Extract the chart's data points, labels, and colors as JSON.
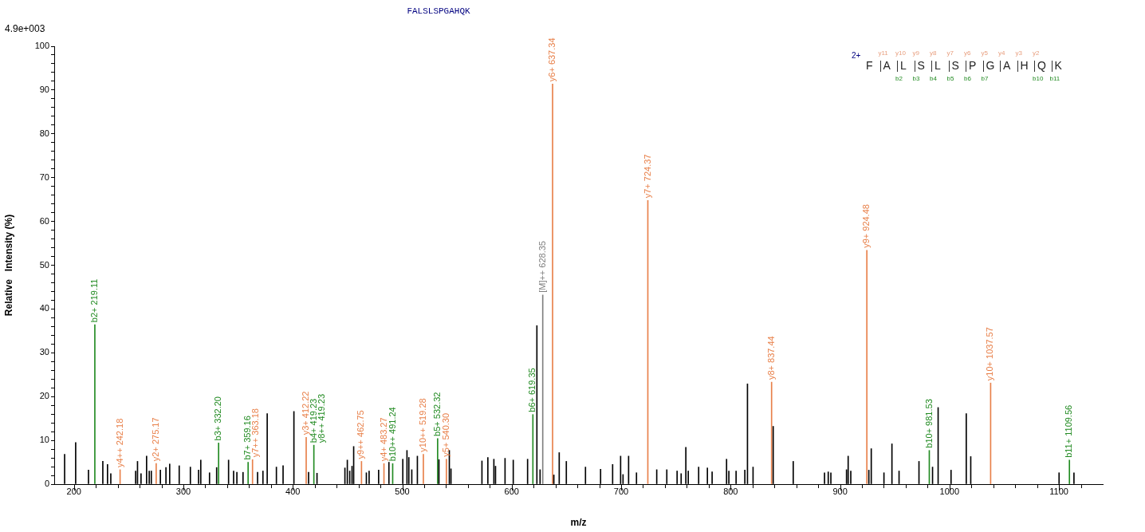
{
  "chart_data": {
    "type": "bar",
    "title": "FALSLSPGAHQK",
    "xlabel": "m/z",
    "ylabel": "Relative   Intensity (%)",
    "xlim": [
      182,
      1140
    ],
    "xticks": [
      200,
      {
        "value": 220,
        "label": null
      },
      {
        "value": 240,
        "label": null
      },
      {
        "value": 260,
        "label": null
      },
      {
        "value": 280,
        "label": null
      },
      300,
      {
        "value": 320,
        "label": null
      },
      {
        "value": 340,
        "label": null
      },
      {
        "value": 360,
        "label": null
      },
      {
        "value": 380,
        "label": null
      },
      400,
      {
        "value": 420,
        "label": null
      },
      {
        "value": 440,
        "label": null
      },
      {
        "value": 460,
        "label": null
      },
      {
        "value": 480,
        "label": null
      },
      500,
      {
        "value": 520,
        "label": null
      },
      {
        "value": 540,
        "label": null
      },
      {
        "value": 560,
        "label": null
      },
      {
        "value": 580,
        "label": null
      },
      600,
      {
        "value": 620,
        "label": null
      },
      {
        "value": 640,
        "label": null
      },
      {
        "value": 660,
        "label": null
      },
      {
        "value": 680,
        "label": null
      },
      700,
      {
        "value": 720,
        "label": null
      },
      {
        "value": 740,
        "label": null
      },
      {
        "value": 760,
        "label": null
      },
      {
        "value": 780,
        "label": null
      },
      800,
      {
        "value": 820,
        "label": null
      },
      {
        "value": 840,
        "label": null
      },
      {
        "value": 860,
        "label": null
      },
      {
        "value": 880,
        "label": null
      },
      900,
      {
        "value": 920,
        "label": null
      },
      {
        "value": 940,
        "label": null
      },
      {
        "value": 960,
        "label": null
      },
      {
        "value": 980,
        "label": null
      },
      1000,
      {
        "value": 1020,
        "label": null
      },
      {
        "value": 1040,
        "label": null
      },
      {
        "value": 1060,
        "label": null
      },
      {
        "value": 1080,
        "label": null
      },
      1100,
      {
        "value": 1120,
        "label": null
      }
    ],
    "ylim": [
      0,
      100
    ],
    "yticks": [
      0,
      {
        "value": 2,
        "label": null
      },
      {
        "value": 4,
        "label": null
      },
      {
        "value": 6,
        "label": null
      },
      {
        "value": 8,
        "label": null
      },
      10,
      {
        "value": 12,
        "label": null
      },
      {
        "value": 14,
        "label": null
      },
      {
        "value": 16,
        "label": null
      },
      {
        "value": 18,
        "label": null
      },
      20,
      {
        "value": 22,
        "label": null
      },
      {
        "value": 24,
        "label": null
      },
      {
        "value": 26,
        "label": null
      },
      {
        "value": 28,
        "label": null
      },
      30,
      {
        "value": 32,
        "label": null
      },
      {
        "value": 34,
        "label": null
      },
      {
        "value": 36,
        "label": null
      },
      {
        "value": 38,
        "label": null
      },
      40,
      {
        "value": 42,
        "label": null
      },
      {
        "value": 44,
        "label": null
      },
      {
        "value": 46,
        "label": null
      },
      {
        "value": 48,
        "label": null
      },
      50,
      {
        "value": 52,
        "label": null
      },
      {
        "value": 54,
        "label": null
      },
      {
        "value": 56,
        "label": null
      },
      {
        "value": 58,
        "label": null
      },
      60,
      {
        "value": 62,
        "label": null
      },
      {
        "value": 64,
        "label": null
      },
      {
        "value": 66,
        "label": null
      },
      {
        "value": 68,
        "label": null
      },
      70,
      {
        "value": 72,
        "label": null
      },
      {
        "value": 74,
        "label": null
      },
      {
        "value": 76,
        "label": null
      },
      {
        "value": 78,
        "label": null
      },
      80,
      {
        "value": 82,
        "label": null
      },
      {
        "value": 84,
        "label": null
      },
      {
        "value": 86,
        "label": null
      },
      {
        "value": 88,
        "label": null
      },
      90,
      {
        "value": 92,
        "label": null
      },
      {
        "value": 94,
        "label": null
      },
      {
        "value": 96,
        "label": null
      },
      {
        "value": 98,
        "label": null
      },
      100
    ],
    "grid": false,
    "legend": false,
    "series": [
      {
        "color": "#000000",
        "x": [
          191.5,
          201.6,
          213.3,
          226.4,
          230.7,
          233.7,
          256.4,
          258.1,
          261.3,
          266.4,
          268.8,
          270.7,
          279.0,
          284.1,
          287.5,
          296.2,
          306.4,
          313.9,
          315.9,
          323.9,
          330.4,
          341.3,
          345.9,
          348.9,
          354.5,
          367.8,
          372.7,
          376.6,
          385.0,
          391.1,
          401.0,
          414.4,
          422.1,
          447.6,
          449.8,
          452.0,
          454.1,
          455.6,
          467.2,
          469.7,
          478.4,
          487.8,
          500.5,
          504.3,
          506.0,
          508.7,
          513.8,
          533.5,
          543.0,
          544.5,
          572.8,
          578.2,
          583.7,
          585.2,
          593.9,
          601.4,
          614.5,
          623.0,
          625.9,
          638.5,
          643.4,
          649.9,
          667.4,
          681.2,
          692.2,
          699.5,
          701.7,
          706.8,
          714.0,
          732.5,
          741.7,
          751.1,
          754.8,
          759.1,
          761.3,
          770.8,
          778.8,
          783.1,
          796.3,
          798.4,
          805.0,
          813.0,
          815.4,
          820.5,
          838.9,
          857.2,
          885.8,
          889.2,
          891.6,
          905.9,
          907.4,
          909.8,
          926.3,
          928.5,
          940.1,
          947.4,
          953.9,
          972.1,
          984.5,
          989.6,
          1001.4,
          1015.3,
          1019.4,
          1100.1,
          1113.7
        ],
        "values": [
          6.8,
          9.5,
          3.2,
          5.2,
          4.5,
          2.4,
          3.0,
          5.2,
          2.4,
          6.4,
          3.0,
          3.0,
          3.2,
          3.8,
          4.6,
          4.2,
          3.9,
          3.2,
          5.5,
          2.6,
          3.8,
          5.5,
          3.0,
          2.7,
          2.7,
          2.7,
          3.0,
          16.1,
          3.9,
          4.2,
          16.6,
          2.7,
          2.5,
          3.7,
          5.5,
          3.0,
          4.1,
          8.6,
          2.6,
          3.0,
          3.2,
          5.0,
          5.7,
          7.7,
          6.1,
          3.3,
          6.4,
          5.6,
          7.7,
          3.5,
          5.3,
          6.1,
          5.7,
          4.1,
          5.9,
          5.5,
          5.7,
          36.2,
          3.3,
          2.1,
          7.2,
          5.2,
          3.9,
          3.4,
          4.5,
          6.4,
          2.2,
          6.4,
          2.6,
          3.3,
          3.3,
          3.0,
          2.4,
          8.4,
          3.0,
          3.9,
          3.7,
          2.8,
          5.7,
          3.0,
          3.0,
          3.2,
          22.9,
          3.9,
          13.2,
          5.2,
          2.6,
          2.8,
          2.6,
          3.3,
          6.4,
          3.0,
          3.2,
          8.1,
          2.6,
          9.2,
          3.0,
          5.2,
          3.9,
          17.5,
          3.2,
          16.1,
          6.3,
          2.6,
          2.6
        ]
      },
      {
        "color": "#e8804a",
        "x": [
          242.18,
          275.17,
          363.18,
          412.22,
          462.75,
          483.27,
          519.28,
          540.3,
          637.34,
          724.37,
          837.44,
          924.48,
          1037.57
        ],
        "values": [
          3.3,
          4.7,
          5.6,
          10.7,
          5.2,
          4.7,
          6.8,
          5.7,
          91.4,
          64.8,
          23.3,
          53.4,
          23.1
        ]
      },
      {
        "color": "#228b22",
        "x": [
          219.11,
          332.2,
          359.16,
          419.23,
          491.24,
          532.32,
          619.35,
          981.53,
          1109.56
        ],
        "values": [
          36.4,
          9.4,
          5.0,
          8.9,
          4.7,
          10.4,
          15.9,
          7.7,
          5.5
        ]
      },
      {
        "color": "#808080",
        "x": [
          628.35
        ],
        "values": [
          43.2
        ]
      }
    ],
    "annotations": [
      "4.9e+003",
      "2+",
      "F",
      "A",
      "L",
      "S",
      "L",
      "S",
      "P",
      "G",
      "A",
      "H",
      "Q",
      "K",
      "y11",
      "y10",
      "y9",
      "y8",
      "y7",
      "y6",
      "y5",
      "y4",
      "y3",
      "y2",
      "b2",
      "b3",
      "b4",
      "b5",
      "b6",
      "b7",
      "b10",
      "b11",
      {
        "text": "b2+ 219.11",
        "x": 219.11,
        "y": 36.4
      },
      {
        "text": "y4++ 242.18",
        "x": 242.18,
        "y": 3.3
      },
      {
        "text": "y2+ 275.17",
        "x": 275.17,
        "y": 4.7
      },
      {
        "text": "b3+ 332.20",
        "x": 332.2,
        "y": 9.4
      },
      {
        "text": "b7+ 359.16",
        "x": 359.16,
        "y": 5.0
      },
      {
        "text": "y7++ 363.18",
        "x": 363.18,
        "y": 5.6
      },
      {
        "text": "y3+ 412.22",
        "x": 412.22,
        "y": 10.7
      },
      {
        "text": "b4+ 419.23",
        "x": 419.23,
        "y": 8.9
      },
      {
        "text": "y8++ 419.23",
        "x": 419.23,
        "y": 8.9
      },
      {
        "text": "y9++ 462.75",
        "x": 462.75,
        "y": 5.2
      },
      {
        "text": "y4+ 483.27",
        "x": 483.27,
        "y": 4.7
      },
      {
        "text": "b10++ 491.24",
        "x": 491.24,
        "y": 4.7
      },
      {
        "text": "y10++ 519.28",
        "x": 519.28,
        "y": 6.8
      },
      {
        "text": "b5+ 532.32",
        "x": 532.32,
        "y": 10.4
      },
      {
        "text": "y5+ 540.30",
        "x": 540.3,
        "y": 5.7
      },
      {
        "text": "b6+ 619.35",
        "x": 619.35,
        "y": 15.9
      },
      {
        "text": "[M]++ 628.35",
        "x": 628.35,
        "y": 43.2
      },
      {
        "text": "y6+ 637.34",
        "x": 637.34,
        "y": 91.4
      },
      {
        "text": "y7+ 724.37",
        "x": 724.37,
        "y": 64.8
      },
      {
        "text": "y8+ 837.44",
        "x": 837.44,
        "y": 23.3
      },
      {
        "text": "y9+ 924.48",
        "x": 924.48,
        "y": 53.4
      },
      {
        "text": "b10+ 981.53",
        "x": 981.53,
        "y": 7.7
      },
      {
        "text": "y10+ 1037.57",
        "x": 1037.57,
        "y": 23.1
      },
      {
        "text": "b11+ 1109.56",
        "x": 1109.56,
        "y": 5.5
      }
    ]
  }
}
